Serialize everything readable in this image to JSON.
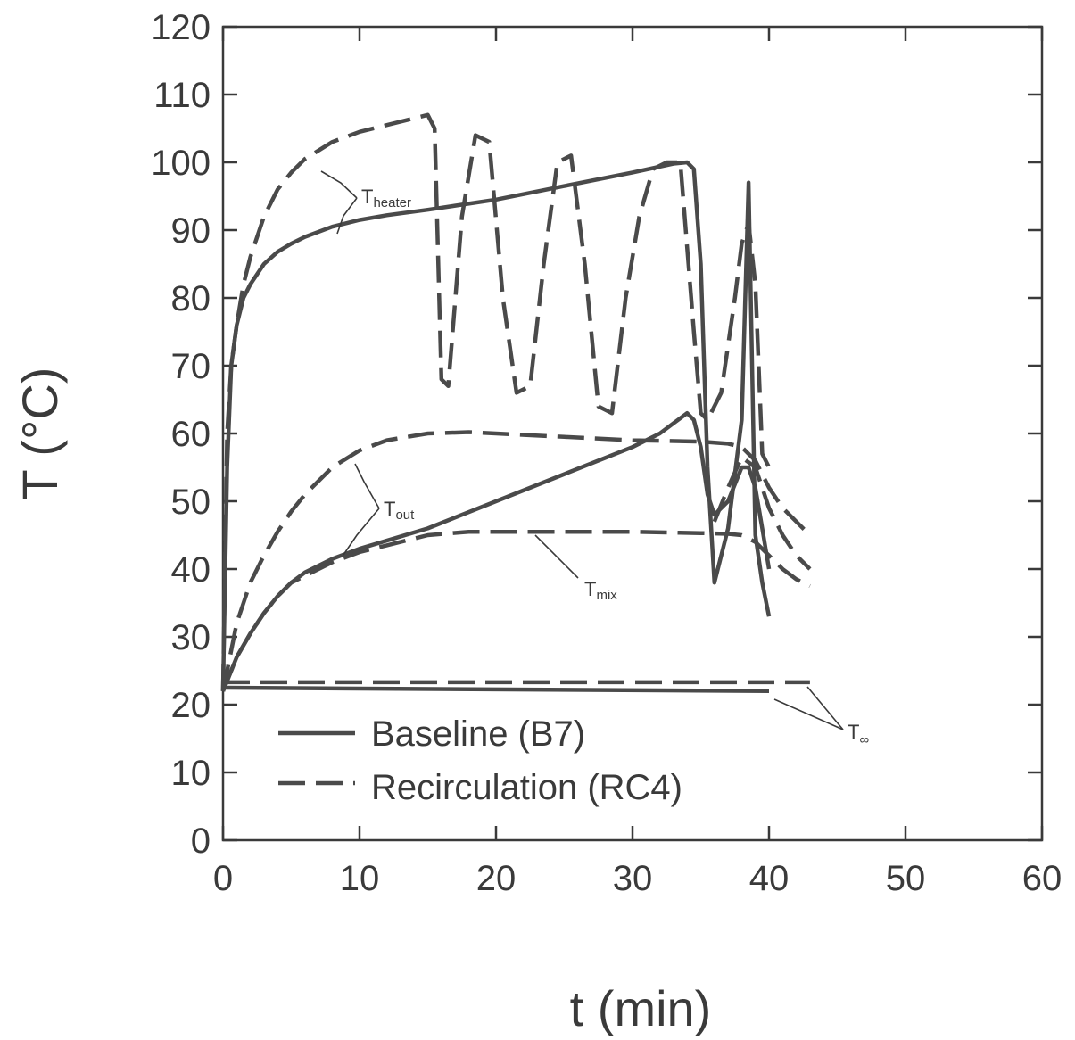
{
  "chart_data": {
    "type": "line",
    "xlabel": "t (min)",
    "ylabel": "T (°C)",
    "xlim": [
      0,
      60
    ],
    "ylim": [
      0,
      120
    ],
    "xticks": [
      "0",
      "10",
      "20",
      "30",
      "40",
      "50",
      "60"
    ],
    "yticks": [
      "0",
      "10",
      "20",
      "30",
      "40",
      "50",
      "60",
      "70",
      "80",
      "90",
      "100",
      "110",
      "120"
    ],
    "grid": false,
    "legend": {
      "position": "bottom-left",
      "entries": [
        {
          "label": "Baseline (B7)",
          "style": "solid"
        },
        {
          "label": "Recirculation (RC4)",
          "style": "dashed"
        }
      ]
    },
    "annotations": [
      {
        "main": "T",
        "sub": "heater"
      },
      {
        "main": "T",
        "sub": "out"
      },
      {
        "main": "T",
        "sub": "mix"
      },
      {
        "main": "T",
        "sub": "∞"
      }
    ],
    "series": [
      {
        "group": "Baseline (B7)",
        "variable": "T heater",
        "style": "solid",
        "x": [
          0,
          0.3,
          0.6,
          1,
          1.5,
          2,
          3,
          4,
          5,
          6,
          8,
          10,
          12,
          15,
          20,
          25,
          30,
          33,
          34,
          34.5,
          35,
          35.5,
          36,
          37,
          38,
          38.5,
          39,
          39.5,
          40
        ],
        "y": [
          22,
          55,
          70,
          76,
          80,
          82,
          85,
          86.8,
          88,
          89,
          90.5,
          91.5,
          92.2,
          93,
          94.5,
          96.5,
          98.5,
          99.8,
          100,
          99,
          85,
          55,
          38,
          46,
          62,
          97,
          45,
          38,
          33
        ]
      },
      {
        "group": "Baseline (B7)",
        "variable": "T out",
        "style": "solid",
        "x": [
          0,
          1,
          2,
          3,
          4,
          5,
          6,
          8,
          10,
          15,
          20,
          25,
          30,
          32,
          33,
          34,
          34.5,
          35,
          35.5,
          36,
          37,
          38,
          38.5,
          39,
          39.5,
          40
        ],
        "y": [
          22,
          27,
          30.5,
          33.5,
          36,
          38,
          39.5,
          41.5,
          43,
          46,
          50,
          54,
          58,
          60,
          61.5,
          63,
          62,
          58,
          51,
          48,
          50,
          55,
          55,
          52,
          46,
          40
        ]
      },
      {
        "group": "Baseline (B7)",
        "variable": "T ∞",
        "style": "solid",
        "x": [
          0,
          40
        ],
        "y": [
          22.5,
          22
        ]
      },
      {
        "group": "Recirculation (RC4)",
        "variable": "T heater",
        "style": "dashed",
        "x": [
          0,
          0.3,
          0.6,
          1,
          1.5,
          2,
          3,
          4,
          5,
          6,
          8,
          10,
          12,
          14,
          15,
          15.5,
          16,
          16.5,
          17.5,
          18.5,
          19.5,
          20.5,
          21.5,
          22.5,
          23.5,
          24.5,
          25.5,
          26.5,
          27.5,
          28.5,
          29.5,
          30.5,
          31.5,
          32.5,
          33.5,
          34.5,
          35,
          35.5,
          36.5,
          37.5,
          38,
          38.5,
          39,
          39.5,
          40
        ],
        "y": [
          22,
          60,
          70,
          76,
          82,
          86,
          92,
          96,
          98.5,
          100.5,
          103,
          104.5,
          105.5,
          106.5,
          107,
          105,
          68,
          67,
          92,
          104,
          103,
          80,
          66,
          67,
          85,
          100,
          101,
          85,
          64,
          63,
          80,
          92,
          99,
          100,
          100,
          75,
          63,
          62,
          66,
          80,
          88,
          91,
          82,
          57,
          55
        ]
      },
      {
        "group": "Recirculation (RC4)",
        "variable": "T out",
        "style": "dashed",
        "x": [
          0,
          1,
          2,
          3,
          4,
          5,
          6,
          8,
          10,
          12,
          15,
          18,
          20,
          25,
          30,
          35,
          37,
          38,
          39,
          40,
          41,
          42,
          43
        ],
        "y": [
          22,
          32,
          38,
          42,
          45.5,
          48.5,
          51,
          55,
          57.5,
          59,
          60,
          60.2,
          60,
          59.5,
          59,
          58.8,
          58.5,
          58,
          56,
          52,
          49,
          47,
          45
        ]
      },
      {
        "group": "Recirculation (RC4)",
        "variable": "T mix",
        "style": "dashed",
        "x": [
          0,
          1,
          2,
          3,
          4,
          5,
          6,
          8,
          10,
          12,
          15,
          18,
          20,
          25,
          30,
          35,
          37,
          38,
          39,
          40,
          41,
          42,
          43
        ],
        "y": [
          22,
          27,
          30.5,
          33.5,
          36,
          38,
          39,
          41,
          42.5,
          43.5,
          45,
          45.5,
          45.5,
          45.5,
          45.5,
          45.3,
          45.2,
          45,
          44,
          42,
          40,
          38.5,
          37.5
        ]
      },
      {
        "group": "Recirculation (RC4)",
        "variable": "T mix (upper)",
        "style": "dashed",
        "x": [
          36,
          37,
          38,
          39,
          40,
          41,
          42,
          43
        ],
        "y": [
          47,
          52,
          56.5,
          55,
          49,
          45,
          42,
          40
        ]
      },
      {
        "group": "Recirculation (RC4)",
        "variable": "T ∞",
        "style": "dashed",
        "x": [
          0,
          43
        ],
        "y": [
          23.3,
          23.3
        ]
      }
    ]
  }
}
